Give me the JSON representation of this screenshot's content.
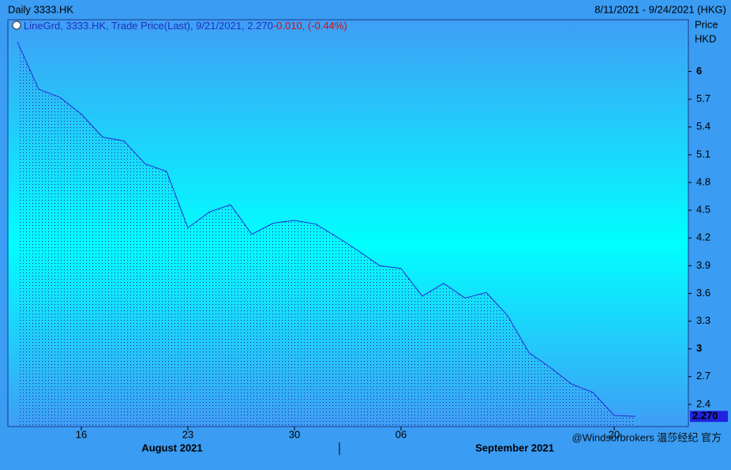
{
  "chart_data": {
    "type": "area",
    "title": "Daily 3333.HK",
    "date_range": "8/11/2021 - 9/24/2021 (HKG)",
    "legend": {
      "text": "LineGrd, 3333.HK, Trade Price(Last), 9/21/2021, 2.270",
      "change": "-0.010, (-0.44%)"
    },
    "y_axis_label": [
      "Price",
      "HKD"
    ],
    "categories": [
      null,
      null,
      null,
      "16",
      null,
      null,
      null,
      null,
      "23",
      null,
      null,
      null,
      null,
      "30",
      null,
      null,
      null,
      null,
      "06",
      null,
      null,
      null,
      null,
      null,
      null,
      null,
      null,
      null,
      "20",
      null
    ],
    "months": [
      "August 2021",
      "September 2021"
    ],
    "values": [
      6.32,
      5.81,
      5.72,
      5.54,
      5.29,
      5.25,
      5.0,
      4.92,
      4.31,
      4.48,
      4.56,
      4.24,
      4.36,
      4.39,
      4.35,
      4.21,
      4.06,
      3.9,
      3.87,
      3.57,
      3.71,
      3.55,
      3.61,
      3.36,
      2.96,
      2.8,
      2.62,
      2.53,
      2.28,
      2.27
    ],
    "last_price": {
      "value": 2.27,
      "label": "2.270"
    },
    "color": "#2a2ad0",
    "ylim": [
      2.16,
      6.56
    ],
    "yticks": [
      2.4,
      2.7,
      3,
      3.3,
      3.6,
      3.9,
      4.2,
      4.5,
      4.8,
      5.1,
      5.4,
      5.7,
      6
    ],
    "watermark": "@Windsorbrokers 温莎经纪 官方"
  }
}
